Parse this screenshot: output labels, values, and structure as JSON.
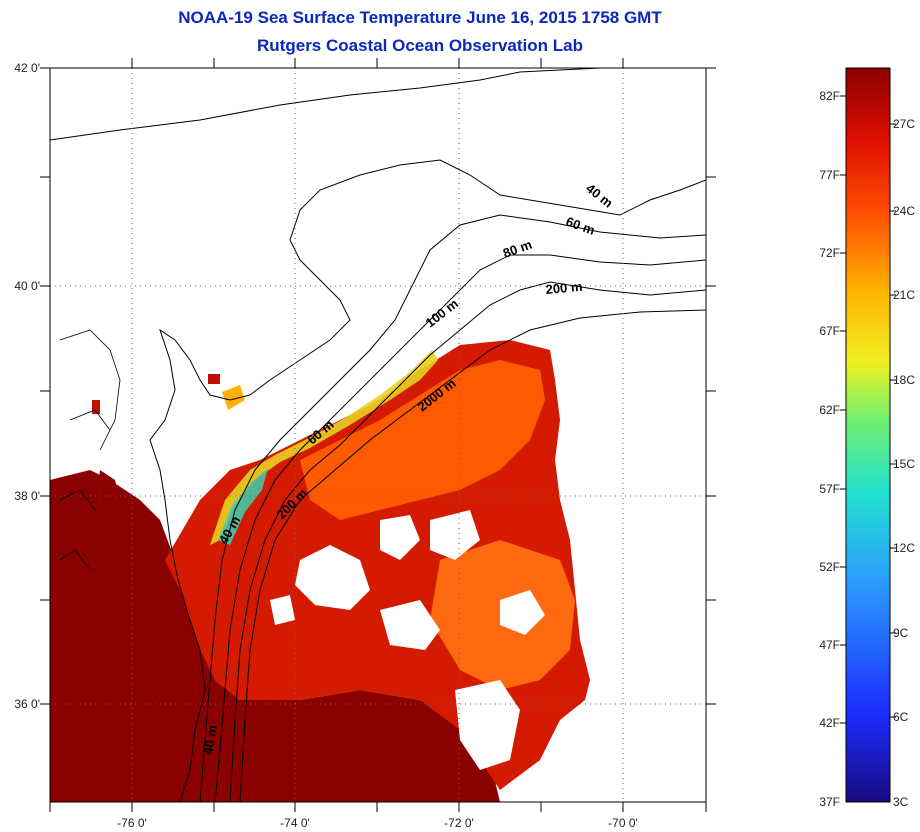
{
  "title": "NOAA-19 Sea Surface Temperature June 16, 2015 1758 GMT",
  "subtitle": "Rutgers Coastal Ocean Observation Lab",
  "map": {
    "lat_labels": [
      "42 0'",
      "40 0'",
      "38 0'",
      "36 0'"
    ],
    "lon_labels": [
      "-76 0'",
      "-74 0'",
      "-72 0'",
      "-70 0'"
    ],
    "isobath_labels": [
      "40 m",
      "60 m",
      "80 m",
      "200 m",
      "100 m",
      "2000 m",
      "60 m",
      "200 m",
      "40 m",
      "40 m"
    ],
    "grid": "dotted",
    "colors": {
      "land": "#ffffff",
      "coast": "#000000",
      "sst_hot": "#8b0000",
      "sst_warm": "#e02000",
      "sst_orange": "#ff6a00",
      "sst_cool": "#ffd000",
      "sst_cold": "#3ad0b0"
    }
  },
  "colorbar": {
    "fahrenheit_labels": [
      "82F",
      "77F",
      "72F",
      "67F",
      "62F",
      "57F",
      "52F",
      "47F",
      "42F",
      "37F"
    ],
    "celsius_labels": [
      "27C",
      "24C",
      "21C",
      "18C",
      "15C",
      "12C",
      "9C",
      "6C",
      "3C"
    ],
    "range_f": [
      37,
      84
    ]
  }
}
